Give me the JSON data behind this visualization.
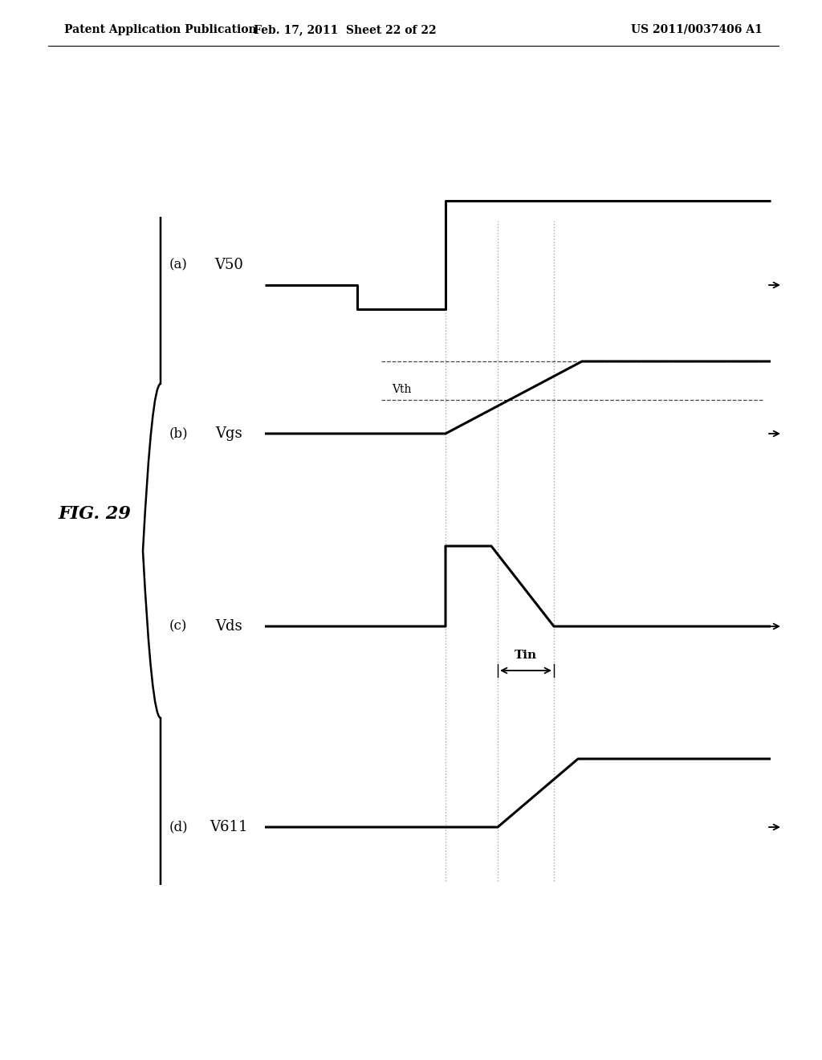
{
  "title_left": "Patent Application Publication",
  "title_center": "Feb. 17, 2011  Sheet 22 of 22",
  "title_right": "US 2011/0037406 A1",
  "fig_label": "FIG. 29",
  "panel_labels": [
    "(a)",
    "(b)",
    "(c)",
    "(d)"
  ],
  "signal_labels": [
    "V50",
    "Vgs",
    "Vds",
    "V611"
  ],
  "vth_label": "Vth",
  "tin_label": "Tin",
  "bg_color": "#ffffff",
  "line_color": "#000000",
  "dashed_color": "#444444",
  "vline_color": "#aaaaaa",
  "line_width": 2.2,
  "header_fontsize": 10,
  "label_fontsize": 12,
  "signal_fontsize": 13,
  "fig_label_fontsize": 16
}
